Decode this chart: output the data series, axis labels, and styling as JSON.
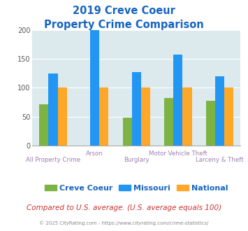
{
  "title_line1": "2019 Creve Coeur",
  "title_line2": "Property Crime Comparison",
  "categories": [
    "All Property Crime",
    "Arson",
    "Burglary",
    "Motor Vehicle Theft",
    "Larceny & Theft"
  ],
  "series": {
    "Creve Coeur": [
      72,
      null,
      48,
      82,
      77
    ],
    "Missouri": [
      125,
      200,
      127,
      157,
      120
    ],
    "National": [
      100,
      100,
      100,
      100,
      100
    ]
  },
  "colors": {
    "Creve Coeur": "#7cb342",
    "Missouri": "#2196f3",
    "National": "#ffa726"
  },
  "ylim": [
    0,
    200
  ],
  "yticks": [
    0,
    50,
    100,
    150,
    200
  ],
  "background_color": "#dce9ed",
  "title_color": "#1565c0",
  "axis_label_color": "#9e7eb0",
  "legend_label_color": "#1565c0",
  "footer_note": "Compared to U.S. average. (U.S. average equals 100)",
  "footer_note_color": "#cc3333",
  "copyright": "© 2025 CityRating.com - https://www.cityrating.com/crime-statistics/",
  "copyright_color": "#888888",
  "bar_width": 0.22
}
